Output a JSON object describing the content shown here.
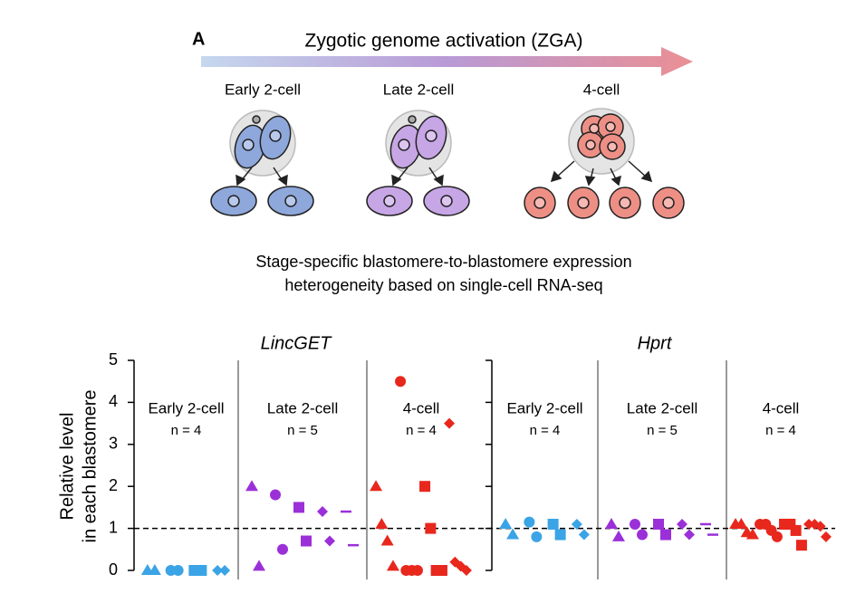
{
  "figure": {
    "panel_label": "A",
    "zga_label": "Zygotic genome activation (ZGA)",
    "stages": [
      "Early 2-cell",
      "Late 2-cell",
      "4-cell"
    ],
    "caption": [
      "Stage-specific blastomere-to-blastomere expression",
      "heterogeneity based on single-cell RNA-seq"
    ]
  },
  "chart_data": {
    "type": "scatter",
    "ylabel": [
      "Relative level",
      "in each blastomere"
    ],
    "ylim": [
      0,
      5
    ],
    "yticks": [
      0,
      1,
      2,
      3,
      4,
      5
    ],
    "reference_line": 1,
    "panels": [
      {
        "title": "LincGET",
        "groups": [
          {
            "label": "Early 2-cell",
            "n_label": "n = 4",
            "color": "#3aa4e6",
            "embryos": [
              {
                "shape": "triangle",
                "values": [
                  0,
                  0
                ]
              },
              {
                "shape": "circle",
                "values": [
                  0,
                  0
                ]
              },
              {
                "shape": "square",
                "values": [
                  0,
                  0
                ]
              },
              {
                "shape": "diamond",
                "values": [
                  0,
                  0
                ]
              }
            ]
          },
          {
            "label": "Late 2-cell",
            "n_label": "n = 5",
            "color": "#9b30d9",
            "embryos": [
              {
                "shape": "triangle",
                "values": [
                  2.0,
                  0.1
                ]
              },
              {
                "shape": "circle",
                "values": [
                  1.8,
                  0.5
                ]
              },
              {
                "shape": "square",
                "values": [
                  1.5,
                  0.7
                ]
              },
              {
                "shape": "diamond",
                "values": [
                  1.4,
                  0.7
                ]
              },
              {
                "shape": "dash",
                "values": [
                  1.4,
                  0.6
                ]
              }
            ]
          },
          {
            "label": "4-cell",
            "n_label": "n = 4",
            "color": "#e8271d",
            "embryos": [
              {
                "shape": "triangle",
                "values": [
                  2.0,
                  1.1,
                  0.7,
                  0.1
                ]
              },
              {
                "shape": "circle",
                "values": [
                  4.5,
                  0,
                  0,
                  0
                ]
              },
              {
                "shape": "square",
                "values": [
                  2.0,
                  1.0,
                  0,
                  0
                ]
              },
              {
                "shape": "diamond",
                "values": [
                  3.5,
                  0.2,
                  0.1,
                  0
                ]
              }
            ]
          }
        ]
      },
      {
        "title": "Hprt",
        "groups": [
          {
            "label": "Early 2-cell",
            "n_label": "n = 4",
            "color": "#3aa4e6",
            "embryos": [
              {
                "shape": "triangle",
                "values": [
                  1.1,
                  0.85
                ]
              },
              {
                "shape": "circle",
                "values": [
                  1.15,
                  0.8
                ]
              },
              {
                "shape": "square",
                "values": [
                  1.1,
                  0.85
                ]
              },
              {
                "shape": "diamond",
                "values": [
                  1.1,
                  0.85
                ]
              }
            ]
          },
          {
            "label": "Late 2-cell",
            "n_label": "n = 5",
            "color": "#9b30d9",
            "embryos": [
              {
                "shape": "triangle",
                "values": [
                  1.1,
                  0.8
                ]
              },
              {
                "shape": "circle",
                "values": [
                  1.1,
                  0.85
                ]
              },
              {
                "shape": "square",
                "values": [
                  1.1,
                  0.85
                ]
              },
              {
                "shape": "diamond",
                "values": [
                  1.1,
                  0.85
                ]
              },
              {
                "shape": "dash",
                "values": [
                  1.1,
                  0.85
                ]
              }
            ]
          },
          {
            "label": "4-cell",
            "n_label": "n = 4",
            "color": "#e8271d",
            "embryos": [
              {
                "shape": "triangle",
                "values": [
                  1.1,
                  1.1,
                  0.9,
                  0.85
                ]
              },
              {
                "shape": "circle",
                "values": [
                  1.1,
                  1.1,
                  0.95,
                  0.8
                ]
              },
              {
                "shape": "square",
                "values": [
                  1.1,
                  1.1,
                  0.95,
                  0.6
                ]
              },
              {
                "shape": "diamond",
                "values": [
                  1.1,
                  1.1,
                  1.05,
                  0.8
                ]
              }
            ]
          }
        ]
      }
    ]
  }
}
